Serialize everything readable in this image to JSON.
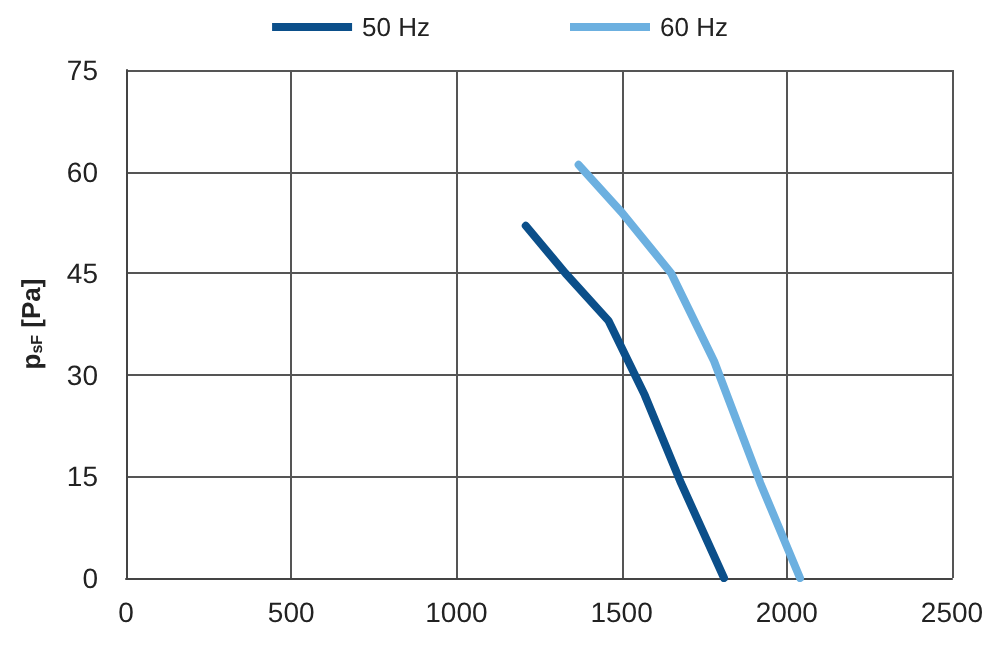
{
  "chart_data": {
    "type": "line",
    "ylabel": "p$_{sF}$ [Pa]",
    "series": [
      {
        "name": "50 Hz",
        "color": "#0b4f8a",
        "x": [
          1210,
          1330,
          1460,
          1570,
          1680,
          1810
        ],
        "values": [
          52,
          45,
          38,
          27,
          14,
          0
        ]
      },
      {
        "name": "60 Hz",
        "color": "#6cb0e0",
        "x": [
          1370,
          1500,
          1650,
          1780,
          1920,
          2040
        ],
        "values": [
          61,
          54,
          45,
          32,
          14,
          0
        ]
      }
    ],
    "xlim": [
      0,
      2500
    ],
    "xticks": [
      0,
      500,
      1000,
      1500,
      2000,
      2500
    ],
    "ylim": [
      0,
      75
    ],
    "yticks": [
      0,
      15,
      30,
      45,
      60,
      75
    ],
    "grid": true,
    "legend": "top",
    "marker": "none",
    "line_style": "solid"
  }
}
